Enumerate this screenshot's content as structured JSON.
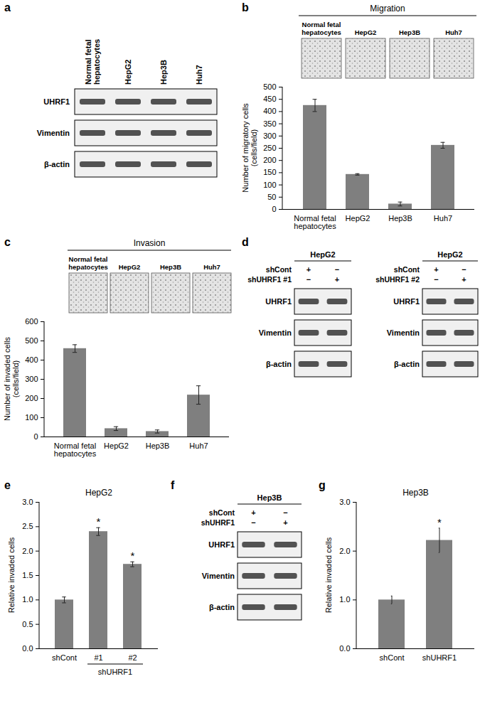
{
  "chart_data": [
    {
      "type": "bar",
      "categories": [
        "Normal fetal hepatocytes",
        "HepG2",
        "Hep3B",
        "Huh7"
      ],
      "values": [
        425,
        143,
        22,
        262
      ],
      "errors": [
        25,
        3,
        8,
        12
      ],
      "y_label": "Number of migratory cells (cells/field)",
      "color": "#7f7f7f",
      "ylim": [
        0,
        500
      ],
      "yticks": [
        0,
        50,
        100,
        150,
        200,
        250,
        300,
        350,
        400,
        450,
        500
      ]
    },
    {
      "type": "bar",
      "categories": [
        "Normal fetal hepatocytes",
        "HepG2",
        "Hep3B",
        "Huh7"
      ],
      "values": [
        460,
        43,
        28,
        218
      ],
      "errors": [
        20,
        10,
        8,
        48
      ],
      "y_label": "Number of invaded cells (cells/field)",
      "color": "#7f7f7f",
      "ylim": [
        0,
        600
      ],
      "yticks": [
        0,
        100,
        200,
        300,
        400,
        500,
        600
      ]
    },
    {
      "panel": "e",
      "type": "bar",
      "title": "HepG2",
      "categories": [
        "shCont",
        "#1",
        "#2"
      ],
      "values": [
        1.0,
        2.4,
        1.73
      ],
      "errors": [
        0.06,
        0.08,
        0.05
      ],
      "significance": [
        null,
        "*",
        "*"
      ],
      "groups": [
        {
          "label": "shUHRF1",
          "categories": [
            "#1",
            "#2"
          ]
        }
      ],
      "y_label": "Relative invaded cells",
      "color": "#7f7f7f",
      "ylim": [
        0,
        3
      ],
      "yticks": [
        {
          "value": 0,
          "label": "0.0"
        },
        {
          "value": 0.5,
          "label": "0.5"
        },
        {
          "value": 1,
          "label": "1.0"
        },
        {
          "value": 1.5,
          "label": "1.5"
        },
        {
          "value": 2,
          "label": "2.0"
        },
        {
          "value": 2.5,
          "label": "2.5"
        },
        {
          "value": 3,
          "label": "3.0"
        }
      ]
    },
    {
      "panel": "g",
      "type": "bar",
      "title": "Hep3B",
      "categories": [
        "shCont",
        "shUHRF1"
      ],
      "values": [
        1.0,
        2.22
      ],
      "errors": [
        0.08,
        0.25
      ],
      "significance": [
        null,
        "*"
      ],
      "y_label": "Relative invaded cells",
      "color": "#7f7f7f",
      "ylim": [
        0,
        3
      ],
      "yticks": [
        {
          "value": 0,
          "label": "0.0"
        },
        {
          "value": 1,
          "label": "1.0"
        },
        {
          "value": 2,
          "label": "2.0"
        },
        {
          "value": 3,
          "label": "3.0"
        }
      ]
    }
  ],
  "image_panels": [
    {
      "panel": "b",
      "header": "Migration",
      "labels": [
        "Normal fetal hepatocytes",
        "HepG2",
        "Hep3B",
        "Huh7"
      ]
    },
    {
      "panel": "c",
      "header": "Invasion",
      "labels": [
        "Normal fetal hepatocytes",
        "HepG2",
        "Hep3B",
        "Huh7"
      ]
    }
  ],
  "blots": [
    {
      "panel": "a",
      "lanes": [
        "Normal fetal hepatocytes",
        "HepG2",
        "Hep3B",
        "Huh7"
      ],
      "rows": [
        "UHRF1",
        "Vimentin",
        "β-actin"
      ]
    },
    {
      "panel": "d",
      "title": "HepG2",
      "conditions": [
        {
          "label": "shCont",
          "signs": [
            "+",
            "−"
          ]
        },
        {
          "label": "shUHRF1 #1",
          "signs": [
            "−",
            "+"
          ]
        }
      ],
      "rows": [
        "UHRF1",
        "Vimentin",
        "β-actin"
      ]
    },
    {
      "title": "HepG2",
      "conditions": [
        {
          "label": "shCont",
          "signs": [
            "+",
            "−"
          ]
        },
        {
          "label": "shUHRF1 #2",
          "signs": [
            "−",
            "+"
          ]
        }
      ],
      "rows": [
        "UHRF1",
        "Vimentin",
        "β-actin"
      ]
    },
    {
      "panel": "f",
      "title": "Hep3B",
      "conditions": [
        {
          "label": "shCont",
          "signs": [
            "+",
            "−"
          ]
        },
        {
          "label": "shUHRF1",
          "signs": [
            "−",
            "+"
          ]
        }
      ],
      "rows": [
        "UHRF1",
        "Vimentin",
        "β-actin"
      ]
    }
  ]
}
